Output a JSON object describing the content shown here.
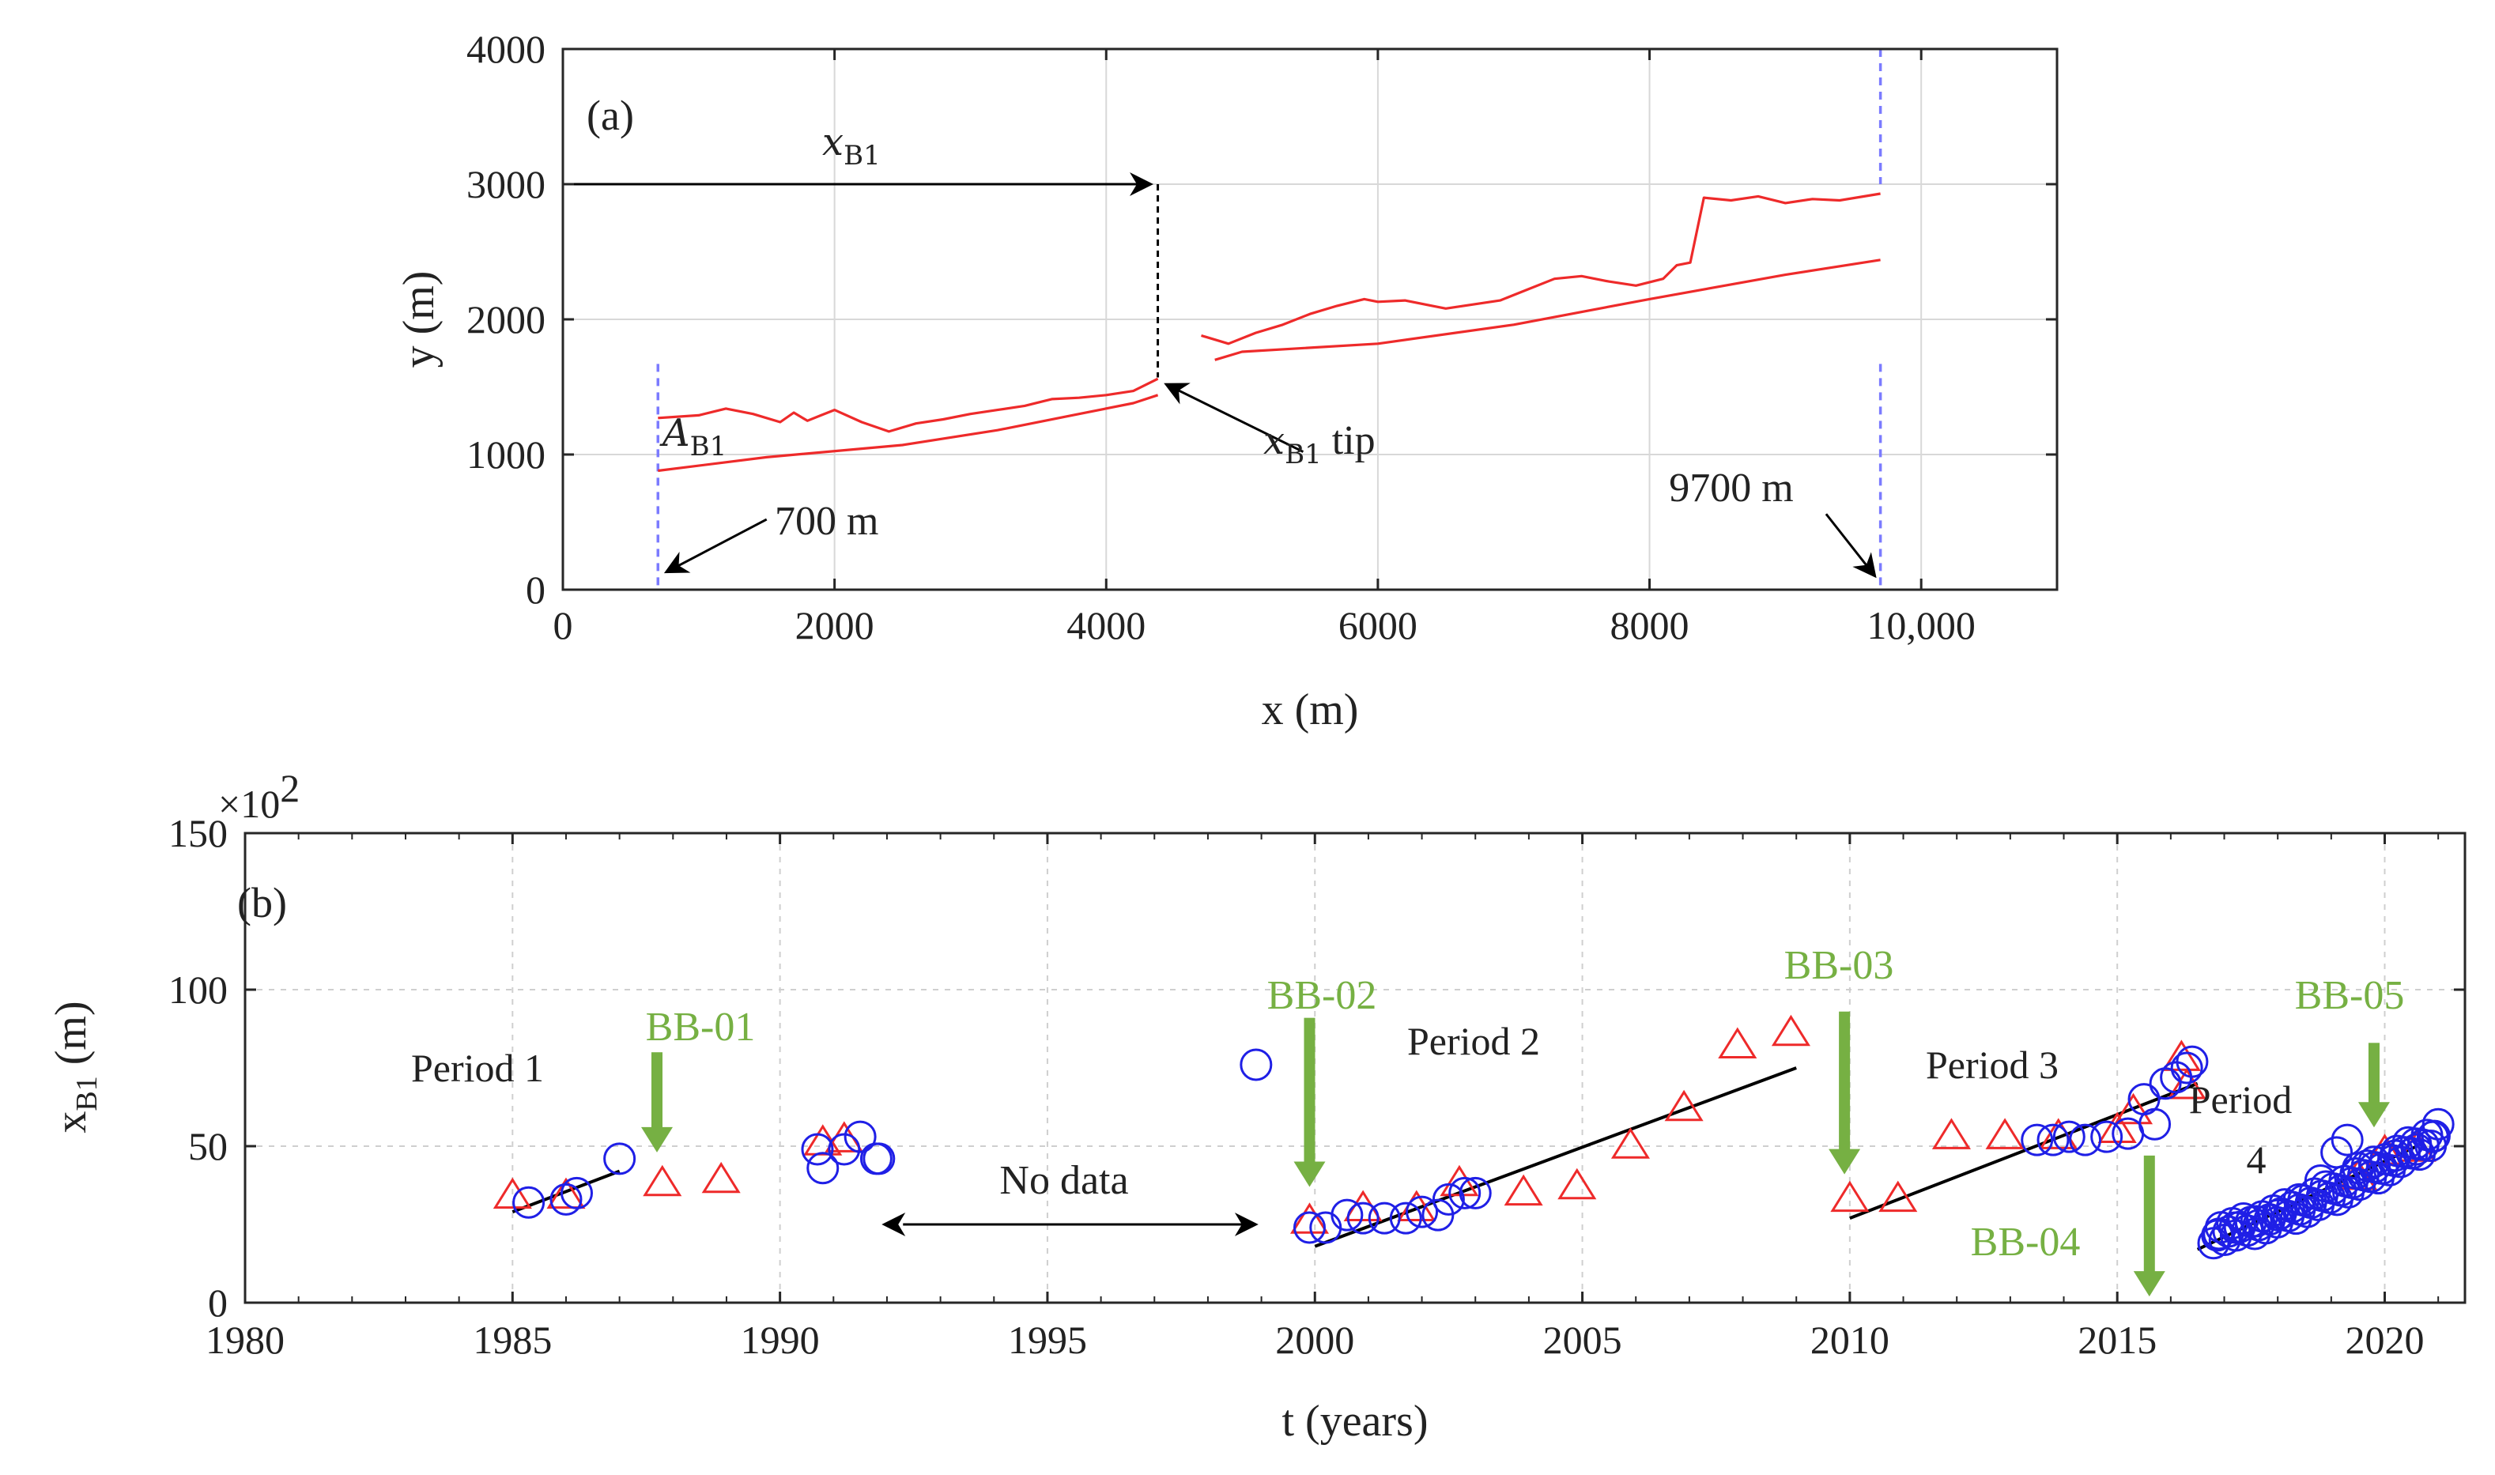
{
  "figure": {
    "panel_a": {
      "label": "(a)",
      "xlabel": "x (m)",
      "ylabel": "y (m)",
      "xticks": [
        0,
        2000,
        4000,
        6000,
        8000,
        10000
      ],
      "xtick_labels": [
        "0",
        "2000",
        "4000",
        "6000",
        "8000",
        "10,000"
      ],
      "yticks": [
        0,
        1000,
        2000,
        3000,
        4000
      ],
      "ytick_labels": [
        "0",
        "1000",
        "2000",
        "3000",
        "4000"
      ],
      "annotations": {
        "xb1_top": {
          "base": "x",
          "sub": "B1"
        },
        "xb1_tip": {
          "base": "x",
          "sub": "B1",
          "suffix": " tip"
        },
        "ab1": {
          "base": "A",
          "sub": "B1"
        },
        "left_bound": "700 m",
        "right_bound": "9700 m"
      }
    },
    "panel_b": {
      "label": "(b)",
      "xlabel": "t (years)",
      "ylabel_base": "x",
      "ylabel_sub": "B1",
      "ylabel_unit": " (m)",
      "exponent": "×10",
      "exponent_power": "2",
      "xticks": [
        1980,
        1985,
        1990,
        1995,
        2000,
        2005,
        2010,
        2015,
        2020
      ],
      "xtick_labels": [
        "1980",
        "1985",
        "1990",
        "1995",
        "2000",
        "2005",
        "2010",
        "2015",
        "2020"
      ],
      "yticks": [
        0,
        50,
        100,
        150
      ],
      "ytick_labels": [
        "0",
        "50",
        "100",
        "150"
      ],
      "no_data": "No data",
      "periods": [
        "Period 1",
        "Period 2",
        "Period 3",
        "Period",
        "4"
      ],
      "events": [
        "BB-01",
        "BB-02",
        "BB-03",
        "BB-04",
        "BB-05"
      ]
    }
  },
  "colors": {
    "red": "#ee2a2a",
    "blue": "#1f1fe6",
    "green": "#76b043",
    "boundary": "#7b7bff",
    "black": "#000000"
  },
  "chart_data": [
    {
      "type": "line",
      "panel": "(a)",
      "xlabel": "x (m)",
      "ylabel": "y (m)",
      "xlim": [
        0,
        11000
      ],
      "ylim": [
        0,
        4000
      ],
      "grid": true,
      "series": [
        {
          "segment": "lower shoreline west",
          "x": [
            700,
            1500,
            2500,
            3200,
            3800,
            4200,
            4380
          ],
          "y": [
            880,
            980,
            1070,
            1180,
            1300,
            1380,
            1440
          ]
        },
        {
          "segment": "upper shoreline west",
          "x": [
            700,
            1000,
            1200,
            1400,
            1600,
            1700,
            1800,
            1900,
            2000,
            2200,
            2400,
            2600,
            2800,
            3000,
            3200,
            3400,
            3600,
            3800,
            4000,
            4200,
            4380
          ],
          "y": [
            1270,
            1290,
            1340,
            1300,
            1240,
            1310,
            1250,
            1290,
            1330,
            1240,
            1170,
            1230,
            1260,
            1300,
            1330,
            1360,
            1410,
            1420,
            1440,
            1470,
            1560
          ]
        },
        {
          "segment": "lower shoreline east",
          "x": [
            4800,
            5000,
            6000,
            7000,
            8000,
            9000,
            9700
          ],
          "y": [
            1700,
            1760,
            1820,
            1960,
            2150,
            2330,
            2440
          ]
        },
        {
          "segment": "upper shoreline east",
          "x": [
            4700,
            4900,
            5100,
            5300,
            5500,
            5700,
            5900,
            6000,
            6200,
            6400,
            6500,
            6700,
            6900,
            7100,
            7300,
            7500,
            7700,
            7900,
            8100,
            8200,
            8300,
            8400,
            8600,
            8800,
            9000,
            9200,
            9400,
            9700
          ],
          "y": [
            1880,
            1820,
            1900,
            1960,
            2040,
            2100,
            2150,
            2130,
            2140,
            2100,
            2080,
            2110,
            2140,
            2220,
            2300,
            2320,
            2280,
            2250,
            2300,
            2400,
            2420,
            2900,
            2880,
            2910,
            2860,
            2890,
            2880,
            2930
          ]
        }
      ],
      "annotations": [
        {
          "text": "700 m",
          "x": 700
        },
        {
          "text": "9700 m",
          "x": 9700
        },
        {
          "text": "x_B1 tip",
          "x": 4380,
          "y": 1560
        }
      ]
    },
    {
      "type": "scatter",
      "panel": "(b)",
      "xlabel": "t (years)",
      "ylabel": "x_B1 (m)",
      "y_multiplier": 100,
      "xlim": [
        1980,
        2021.5
      ],
      "ylim": [
        0,
        150
      ],
      "grid": true,
      "series": [
        {
          "marker": "triangle",
          "x": [
            1985.0,
            1986.0,
            1987.8,
            1988.9,
            1990.8,
            1991.2,
            1999.9,
            2000.9,
            2001.9,
            2002.7,
            2003.9,
            2004.9,
            2005.9,
            2006.9,
            2007.9,
            2008.9,
            2010.0,
            2010.9,
            2011.9,
            2012.9,
            2013.9,
            2015.0,
            2015.3,
            2016.3,
            2016.2,
            2019.5,
            2020.0,
            2020.6
          ],
          "y": [
            34,
            34,
            38,
            39,
            51,
            52,
            26,
            30,
            30,
            38,
            35,
            37,
            50,
            62,
            82,
            86,
            33,
            33,
            53,
            53,
            53,
            55,
            61,
            69,
            78,
            40,
            48,
            49
          ]
        },
        {
          "marker": "circle",
          "x": [
            1985.3,
            1986.0,
            1986.2,
            1987.0,
            1990.7,
            1990.8,
            1991.2,
            1991.5,
            1991.8,
            1991.85,
            1998.9,
            1999.9,
            2000.2,
            2000.6,
            2000.9,
            2001.3,
            2001.7,
            2002.0,
            2002.3,
            2002.5,
            2002.8,
            2003.0,
            2013.5,
            2013.8,
            2014.1,
            2014.4,
            2014.8,
            2015.2,
            2015.5,
            2015.7,
            2015.9,
            2016.1,
            2016.3,
            2016.4,
            2016.9,
            2017.2,
            2017.6,
            2018.0,
            2018.4,
            2018.8,
            2019.1,
            2019.3,
            2019.5,
            2019.8,
            2020.2,
            2020.6,
            2020.9,
            2021.0
          ],
          "y": [
            32,
            33,
            35,
            46,
            49,
            43,
            49,
            53,
            46,
            46,
            76,
            24,
            24,
            28,
            27,
            27,
            27,
            29,
            28,
            33,
            35,
            35,
            52,
            52,
            53,
            52,
            53,
            54,
            65,
            57,
            70,
            72,
            75,
            77,
            22,
            24,
            26,
            28,
            33,
            39,
            48,
            52,
            43,
            45,
            47,
            49,
            53,
            57
          ]
        },
        {
          "name": "Period 1",
          "type": "line",
          "x": [
            1985.0,
            1987.0
          ],
          "y": [
            29,
            42
          ]
        },
        {
          "name": "Period 2",
          "type": "line",
          "x": [
            2000.0,
            2009.0
          ],
          "y": [
            18,
            75
          ]
        },
        {
          "name": "Period 3",
          "type": "line",
          "x": [
            2010.0,
            2016.5
          ],
          "y": [
            27,
            70
          ]
        },
        {
          "name": "Period 4",
          "type": "line",
          "x": [
            2016.5,
            2020.6
          ],
          "y": [
            17,
            50
          ]
        }
      ],
      "annotations": [
        {
          "text": "BB-01",
          "x": 1987.7,
          "arrow": "down",
          "y_top": 80,
          "y_bottom": 48
        },
        {
          "text": "BB-02",
          "x": 1999.9,
          "arrow": "down",
          "y_top": 91,
          "y_bottom": 37
        },
        {
          "text": "BB-03",
          "x": 2009.9,
          "arrow": "down",
          "y_top": 93,
          "y_bottom": 41
        },
        {
          "text": "BB-04",
          "x": 2015.6,
          "arrow": "down",
          "y_top": 47,
          "y_bottom": 2
        },
        {
          "text": "BB-05",
          "x": 2019.8,
          "arrow": "down",
          "y_top": 83,
          "y_bottom": 56
        },
        {
          "text": "No data",
          "x_start": 1992.3,
          "x_end": 1998.9,
          "y": 25
        }
      ]
    }
  ]
}
